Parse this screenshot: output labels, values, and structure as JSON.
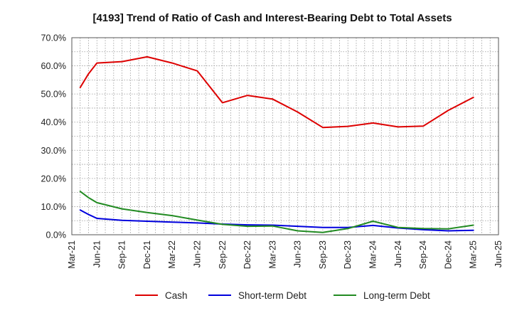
{
  "chart_data": {
    "type": "line",
    "title": "[4193]  Trend of Ratio of Cash and Interest-Bearing Debt to Total Assets",
    "xlabel": "",
    "ylabel": "",
    "ylim": [
      0,
      70
    ],
    "yticks": [
      0,
      10,
      20,
      30,
      40,
      50,
      60,
      70
    ],
    "ytick_labels": [
      "0.0%",
      "10.0%",
      "20.0%",
      "30.0%",
      "40.0%",
      "50.0%",
      "60.0%",
      "70.0%"
    ],
    "x_range_months": [
      0,
      51
    ],
    "xticks": [
      0,
      3,
      6,
      9,
      12,
      15,
      18,
      21,
      24,
      27,
      30,
      33,
      36,
      39,
      42,
      45,
      48,
      51
    ],
    "xtick_labels": [
      "Mar-21",
      "Jun-21",
      "Sep-21",
      "Dec-21",
      "Mar-22",
      "Jun-22",
      "Sep-22",
      "Dec-22",
      "Mar-23",
      "Jun-23",
      "Sep-23",
      "Dec-23",
      "Mar-24",
      "Jun-24",
      "Sep-24",
      "Dec-24",
      "Mar-25",
      "Jun-25"
    ],
    "grid": true,
    "legend_position": "bottom",
    "x": [
      1,
      2,
      3,
      6,
      9,
      12,
      15,
      18,
      21,
      24,
      27,
      30,
      33,
      36,
      39,
      42,
      45,
      48
    ],
    "series": [
      {
        "name": "Cash",
        "color": "#dd0000",
        "values": [
          52.3,
          57.2,
          61.0,
          61.5,
          63.2,
          61.0,
          58.2,
          46.9,
          49.5,
          48.2,
          43.6,
          38.1,
          38.5,
          39.7,
          38.3,
          38.6,
          44.2,
          48.8
        ]
      },
      {
        "name": "Short-term Debt",
        "color": "#0000dd",
        "values": [
          8.8,
          7.2,
          5.8,
          5.1,
          4.8,
          4.5,
          4.2,
          3.8,
          3.5,
          3.4,
          3.0,
          2.6,
          2.6,
          3.3,
          2.4,
          1.8,
          1.4,
          1.6
        ]
      },
      {
        "name": "Long-term Debt",
        "color": "#228b22",
        "values": [
          15.4,
          13.2,
          11.4,
          9.2,
          7.9,
          6.8,
          5.2,
          3.7,
          3.0,
          3.1,
          1.4,
          0.8,
          2.2,
          4.8,
          2.6,
          2.2,
          2.1,
          3.4
        ]
      }
    ]
  }
}
